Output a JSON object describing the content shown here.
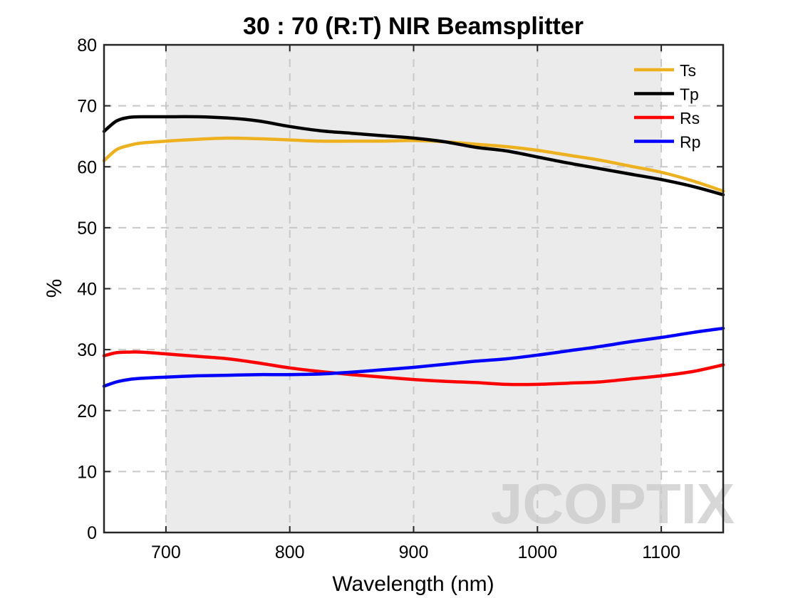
{
  "chart_data": {
    "type": "line",
    "title": "30 : 70 (R:T) NIR Beamsplitter",
    "xlabel": "Wavelength (nm)",
    "ylabel": "%",
    "xlim": [
      650,
      1150
    ],
    "ylim": [
      0,
      80
    ],
    "xticks": [
      700,
      800,
      900,
      1000,
      1100
    ],
    "yticks": [
      0,
      10,
      20,
      30,
      40,
      50,
      60,
      70,
      80
    ],
    "grid": true,
    "legend_position": "top-right",
    "shaded_band": [
      700,
      1100
    ],
    "x": [
      650,
      660,
      670,
      680,
      700,
      725,
      750,
      775,
      800,
      825,
      850,
      875,
      900,
      925,
      950,
      975,
      1000,
      1025,
      1050,
      1075,
      1100,
      1125,
      1150
    ],
    "series": [
      {
        "name": "Ts",
        "color": "#EDB120",
        "values": [
          61.0,
          62.8,
          63.5,
          63.9,
          64.2,
          64.5,
          64.7,
          64.6,
          64.4,
          64.2,
          64.2,
          64.2,
          64.3,
          64.1,
          63.7,
          63.3,
          62.7,
          61.9,
          61.1,
          60.1,
          59.1,
          57.7,
          56.0
        ]
      },
      {
        "name": "Tp",
        "color": "#000000",
        "values": [
          65.8,
          67.5,
          68.1,
          68.2,
          68.2,
          68.2,
          68.0,
          67.5,
          66.6,
          65.9,
          65.5,
          65.1,
          64.7,
          64.1,
          63.2,
          62.6,
          61.6,
          60.6,
          59.7,
          58.8,
          57.9,
          56.8,
          55.4
        ]
      },
      {
        "name": "Rs",
        "color": "#FF0000",
        "values": [
          29.0,
          29.5,
          29.6,
          29.6,
          29.3,
          28.9,
          28.5,
          27.8,
          27.0,
          26.4,
          25.9,
          25.5,
          25.1,
          24.8,
          24.6,
          24.3,
          24.3,
          24.5,
          24.7,
          25.2,
          25.7,
          26.4,
          27.5
        ]
      },
      {
        "name": "Rp",
        "color": "#0000FF",
        "values": [
          24.0,
          24.7,
          25.1,
          25.3,
          25.5,
          25.7,
          25.8,
          25.9,
          25.9,
          26.0,
          26.3,
          26.7,
          27.1,
          27.6,
          28.1,
          28.5,
          29.1,
          29.8,
          30.5,
          31.3,
          32.0,
          32.8,
          33.5
        ]
      }
    ]
  },
  "watermark": "JCOPTIX"
}
